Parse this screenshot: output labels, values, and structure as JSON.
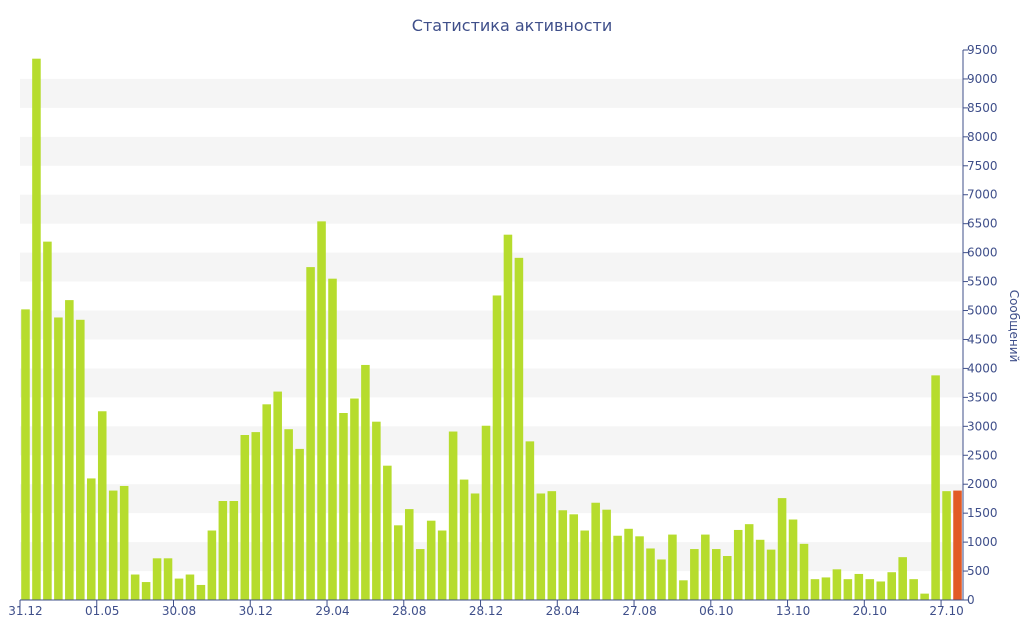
{
  "chart_data": {
    "type": "bar",
    "title": "Статистика активности",
    "xlabel": "",
    "ylabel": "Сообщений",
    "ylim": [
      0,
      9500
    ],
    "y_axis_side": "right",
    "grid": "horizontal alternating bands",
    "legend": "none",
    "categories": [
      "31.12",
      "",
      "",
      "",
      "",
      "",
      "",
      "01.05",
      "",
      "",
      "",
      "",
      "",
      "",
      "30.08",
      "",
      "",
      "",
      "",
      "",
      "",
      "30.12",
      "",
      "",
      "",
      "",
      "",
      "",
      "29.04",
      "",
      "",
      "",
      "",
      "",
      "",
      "28.08",
      "",
      "",
      "",
      "",
      "",
      "",
      "28.12",
      "",
      "",
      "",
      "",
      "",
      "",
      "28.04",
      "",
      "",
      "",
      "",
      "",
      "",
      "27.08",
      "",
      "",
      "",
      "",
      "",
      "",
      "06.10",
      "",
      "",
      "",
      "",
      "",
      "",
      "13.10",
      "",
      "",
      "",
      "",
      "",
      "",
      "20.10",
      "",
      "",
      "",
      "",
      "",
      "",
      "27.10",
      ""
    ],
    "values": [
      5020,
      9350,
      6190,
      4880,
      5180,
      4840,
      2100,
      3260,
      1890,
      1970,
      440,
      310,
      720,
      720,
      370,
      440,
      260,
      1200,
      1710,
      1710,
      2850,
      2900,
      3380,
      3600,
      2950,
      2610,
      5750,
      6540,
      5550,
      3230,
      3480,
      4060,
      3080,
      2320,
      1290,
      1570,
      880,
      1370,
      1200,
      2910,
      2080,
      1840,
      3010,
      5260,
      6310,
      5910,
      2740,
      1840,
      1880,
      1550,
      1480,
      1200,
      1680,
      1560,
      1110,
      1230,
      1100,
      890,
      700,
      1130,
      340,
      880,
      1130,
      880,
      760,
      1210,
      1310,
      1040,
      870,
      1760,
      1390,
      970,
      360,
      390,
      530,
      360,
      450,
      360,
      320,
      480,
      740,
      360,
      110,
      3880,
      1880,
      1890
    ],
    "bar_color": "#b6dc2d",
    "highlight_bar_index": 85,
    "highlight_bar_color": "#e25b26",
    "y_ticks": [
      0,
      500,
      1000,
      1500,
      2000,
      2500,
      3000,
      3500,
      4000,
      4500,
      5000,
      5500,
      6000,
      6500,
      7000,
      7500,
      8000,
      8500,
      9000,
      9500
    ],
    "band_color": "#f5f5f5",
    "axis_color": "#3f4f8a"
  }
}
